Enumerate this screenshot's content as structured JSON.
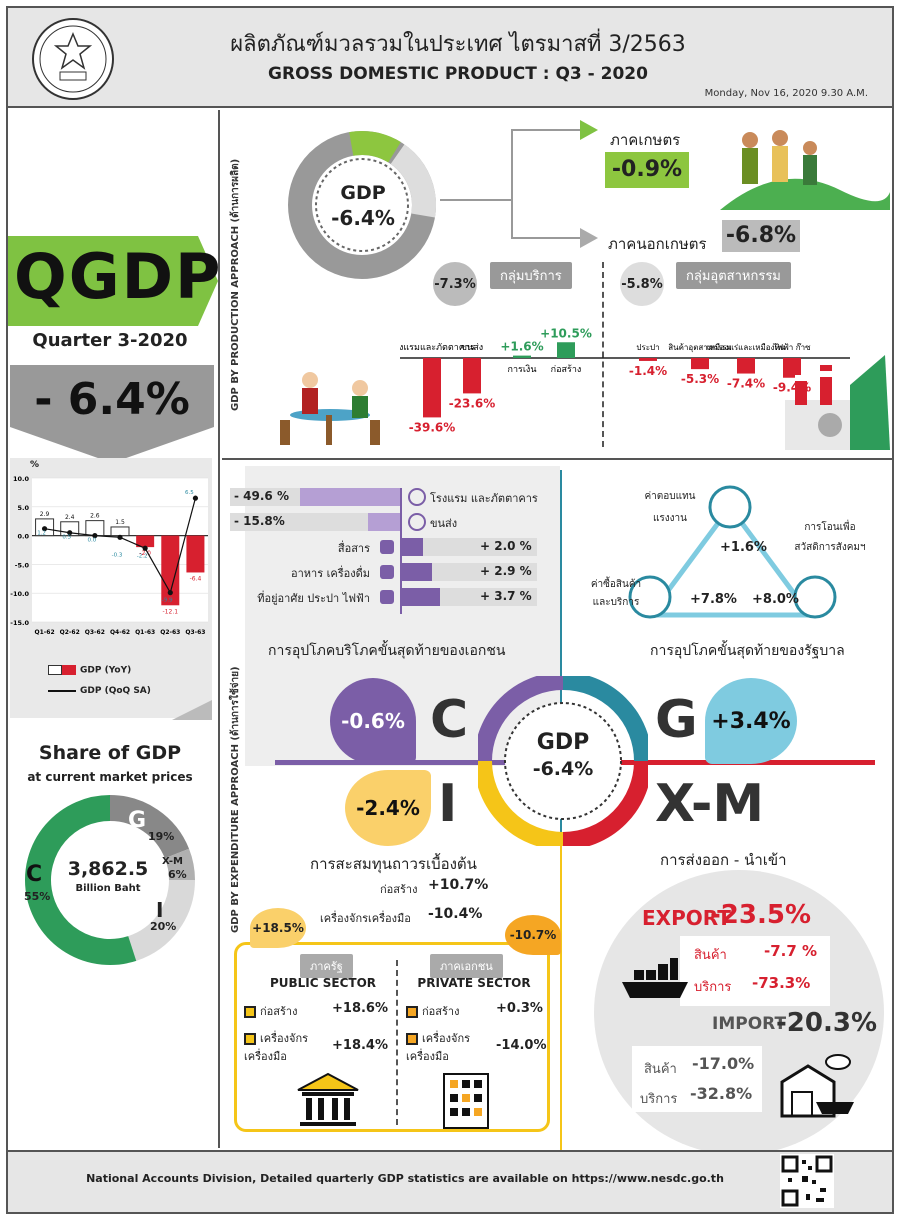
{
  "header": {
    "title_th": "ผลิตภัณฑ์มวลรวมในประเทศ ไตรมาสที่ 3/2563",
    "title_en": "GROSS DOMESTIC PRODUCT : Q3 - 2020",
    "date": "Monday, Nov 16, 2020 9.30 A.M."
  },
  "left": {
    "qgdp": "QGDP",
    "quarter": "Quarter 3-2020",
    "gdp_value": "- 6.4%",
    "chart_unit": "%",
    "legend_yoy": "GDP (YoY)",
    "legend_qoq": "GDP (QoQ SA)",
    "share_title": "Share of GDP",
    "share_sub": "at current  market prices",
    "share_total": "3,862.5",
    "share_unit": "Billion Baht",
    "share_c_letter": "C",
    "share_c_pct": "55%",
    "share_g_letter": "G",
    "share_g_pct": "19%",
    "share_xm_letter": "X-M",
    "share_xm_pct": "6%",
    "share_i_letter": "I",
    "share_i_pct": "20%",
    "share_colors": {
      "C": "#2e9c5a",
      "G": "#888888",
      "XM": "#b0b0b0",
      "I": "#d9d9d9"
    }
  },
  "chart_data": {
    "type": "bar",
    "categories": [
      "Q1-62",
      "Q2-62",
      "Q3-62",
      "Q4-62",
      "Q1-63",
      "Q2-63",
      "Q3-63"
    ],
    "series": [
      {
        "name": "GDP (YoY)",
        "values": [
          2.9,
          2.4,
          2.6,
          1.5,
          -2.0,
          -12.1,
          -6.4
        ]
      },
      {
        "name": "GDP (QoQ SA)",
        "values": [
          1.2,
          0.5,
          0.0,
          -0.3,
          -2.2,
          -9.9,
          6.5
        ]
      }
    ],
    "yticks": [
      "10.0",
      "5.0",
      "0.0",
      "-5.0",
      "-10.0",
      "-15.0"
    ],
    "ylim": [
      -15,
      10
    ]
  },
  "production": {
    "axis_label": "GDP BY PRODUCTION APPROACH (ด้านการผลิต)",
    "gdp_label": "GDP",
    "gdp_value": "-6.4%",
    "agri_label": "ภาคเกษตร",
    "agri_value": "-0.9%",
    "nonagri_label": "ภาคนอกเกษตร",
    "nonagri_value": "-6.8%",
    "services_label": "กลุ่มบริการ",
    "services_value": "-7.3%",
    "industry_label": "กลุ่มอุตสาหกรรม",
    "industry_value": "-5.8%",
    "services_bars": [
      {
        "label": "โรงแรมและภัตตาคาร",
        "value": -39.6,
        "text": "-39.6%"
      },
      {
        "label": "ขนส่ง",
        "value": -23.6,
        "text": "-23.6%"
      },
      {
        "label": "การเงิน",
        "value": 1.6,
        "text": "+1.6%"
      },
      {
        "label": "ก่อสร้าง",
        "value": 10.5,
        "text": "+10.5%"
      }
    ],
    "industry_bars": [
      {
        "label": "ประปา",
        "value": -1.4,
        "text": "-1.4%"
      },
      {
        "label": "สินค้าอุตสาหกรรม",
        "value": -5.3,
        "text": "-5.3%"
      },
      {
        "label": "เหมืองแร่และเหมืองหิน",
        "value": -7.4,
        "text": "-7.4%"
      },
      {
        "label": "ไฟฟ้า ก๊าซ",
        "value": -9.4,
        "text": "-9.4%"
      }
    ]
  },
  "expenditure": {
    "axis_label": "GDP BY EXPENDITURE APPROACH (ด้านการใช้จ่าย)",
    "c_bars": [
      {
        "text": "- 49.6 %",
        "label": "โรงแรม และภัตตาคาร",
        "value": -49.6
      },
      {
        "text": "- 15.8%",
        "label": "ขนส่ง",
        "value": -15.8
      },
      {
        "text": "+ 2.0 %",
        "label": "สื่อสาร",
        "value": 2.0
      },
      {
        "text": "+ 2.9 %",
        "label": "อาหาร เครื่องดื่ม",
        "value": 2.9
      },
      {
        "text": "+ 3.7 %",
        "label": "ที่อยู่อาศัย ประปา ไฟฟ้า",
        "value": 3.7
      }
    ],
    "c_title": "การอุปโภคบริโภคขั้นสุดท้ายของเอกชน",
    "c_letter": "C",
    "c_value": "-0.6%",
    "g_title": "การอุปโภคขั้นสุดท้ายของรัฐบาล",
    "g_letter": "G",
    "g_value": "+3.4%",
    "g_items": [
      {
        "label": "ค่าตอบแทนแรงงาน",
        "value": "+1.6%"
      },
      {
        "label": "ค่าซื้อสินค้าและบริการ",
        "value": "+7.8%"
      },
      {
        "label": "การโอนเพื่อสวัสดิการสังคมฯ",
        "value": "+8.0%"
      }
    ],
    "center_label": "GDP",
    "center_value": "-6.4%",
    "i_letter": "I",
    "i_value": "-2.4%",
    "i_title": "การสะสมทุนถาวรเบื้องต้น",
    "i_construct_label": "ก่อสร้าง",
    "i_construct_value": "+10.7%",
    "i_machine_label": "เครื่องจักรเครื่องมือ",
    "i_machine_value": "-10.4%",
    "public_total": "+18.5%",
    "public_th": "ภาครัฐ",
    "public_en": "PUBLIC SECTOR",
    "public_construct_label": "ก่อสร้าง",
    "public_construct_value": "+18.6%",
    "public_machine_label": "เครื่องจักรเครื่องมือ",
    "public_machine_value": "+18.4%",
    "private_total": "-10.7%",
    "private_th": "ภาคเอกชน",
    "private_en": "PRIVATE SECTOR",
    "private_construct_label": "ก่อสร้าง",
    "private_construct_value": "+0.3%",
    "private_machine_label": "เครื่องจักรเครื่องมือ",
    "private_machine_value": "-14.0%",
    "xm_letter": "X-M",
    "xm_title": "การส่งออก - นำเข้า",
    "export_label": "EXPORT",
    "export_value": "-23.5%",
    "export_goods_label": "สินค้า",
    "export_goods_value": "-7.7 %",
    "export_services_label": "บริการ",
    "export_services_value": "-73.3%",
    "import_label": "IMPORT",
    "import_value": "-20.3%",
    "import_goods_label": "สินค้า",
    "import_goods_value": "-17.0%",
    "import_services_label": "บริการ",
    "import_services_value": "-32.8%"
  },
  "footer": {
    "text": "National Accounts Division, Detailed quarterly GDP statistics are available on https://www.nesdc.go.th"
  }
}
